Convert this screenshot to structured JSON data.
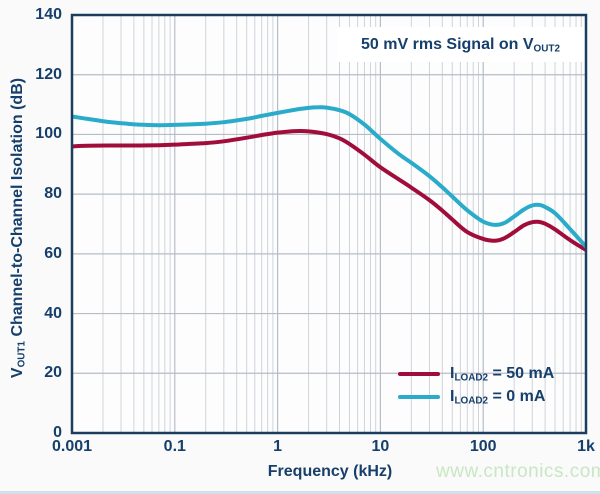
{
  "page": {
    "watermark": "www.cntronics.com",
    "background": "#fafafa",
    "bottom_strip_color": "#cfe2ee"
  },
  "chart_data": {
    "type": "line",
    "x_scale": "log",
    "annotation": {
      "pre": "50 mV rms Signal on V",
      "sub": "OUT2"
    },
    "xlabel": "Frequency (kHz)",
    "ylabel": {
      "pre": "V",
      "sub": "OUT1",
      "post": " Channel-to-Channel Isolation (dB)"
    },
    "x_tick_labels": [
      "0.001",
      "0.1",
      "1",
      "10",
      "100",
      "1k"
    ],
    "x_tick_values": [
      0.001,
      0.1,
      1,
      10,
      100,
      1000
    ],
    "y_ticks": [
      0,
      20,
      40,
      60,
      80,
      100,
      120,
      140
    ],
    "ylim": [
      0,
      140
    ],
    "grid": true,
    "legend_position": "inside-lower-right",
    "colors": {
      "series_50mA": "#a10d3a",
      "series_0mA": "#2aabca",
      "axis_text": "#163f6b",
      "plot_border": "#1c3e5e",
      "grid_major": "#b6bdc7",
      "grid_minor": "#cfd4da",
      "plot_bg": "#fdfdfe"
    },
    "series": [
      {
        "name_parts": {
          "pre": "I",
          "sub": "LOAD2",
          "post": " = 50 mA"
        },
        "color_key": "series_50mA",
        "points": [
          [
            0.001,
            96.0
          ],
          [
            0.002,
            96.2
          ],
          [
            0.005,
            96.3
          ],
          [
            0.01,
            96.3
          ],
          [
            0.02,
            96.3
          ],
          [
            0.05,
            96.4
          ],
          [
            0.1,
            96.6
          ],
          [
            0.2,
            97.1
          ],
          [
            0.3,
            97.7
          ],
          [
            0.5,
            98.9
          ],
          [
            0.7,
            99.8
          ],
          [
            1.0,
            100.6
          ],
          [
            1.5,
            101.1
          ],
          [
            2.0,
            101.0
          ],
          [
            3.0,
            100.1
          ],
          [
            4.0,
            98.7
          ],
          [
            5.0,
            96.8
          ],
          [
            7.0,
            93.2
          ],
          [
            10,
            89.0
          ],
          [
            15,
            85.0
          ],
          [
            20,
            82.2
          ],
          [
            30,
            78.0
          ],
          [
            40,
            74.5
          ],
          [
            50,
            71.5
          ],
          [
            70,
            67.3
          ],
          [
            100,
            65.0
          ],
          [
            130,
            64.4
          ],
          [
            160,
            65.2
          ],
          [
            200,
            67.3
          ],
          [
            250,
            69.6
          ],
          [
            300,
            70.6
          ],
          [
            350,
            70.7
          ],
          [
            400,
            70.1
          ],
          [
            500,
            68.2
          ],
          [
            700,
            64.6
          ],
          [
            1000,
            61.3
          ]
        ]
      },
      {
        "name_parts": {
          "pre": "I",
          "sub": "LOAD2",
          "post": " = 0 mA"
        },
        "color_key": "series_0mA",
        "points": [
          [
            0.001,
            106.0
          ],
          [
            0.002,
            105.2
          ],
          [
            0.005,
            104.2
          ],
          [
            0.01,
            103.7
          ],
          [
            0.02,
            103.3
          ],
          [
            0.05,
            103.1
          ],
          [
            0.1,
            103.2
          ],
          [
            0.2,
            103.6
          ],
          [
            0.3,
            104.1
          ],
          [
            0.5,
            105.2
          ],
          [
            0.7,
            106.2
          ],
          [
            1.0,
            107.2
          ],
          [
            1.5,
            108.3
          ],
          [
            2.0,
            108.9
          ],
          [
            2.5,
            109.1
          ],
          [
            3.0,
            109.0
          ],
          [
            4.0,
            108.1
          ],
          [
            5.0,
            106.8
          ],
          [
            7.0,
            103.3
          ],
          [
            10,
            98.5
          ],
          [
            15,
            93.5
          ],
          [
            20,
            90.5
          ],
          [
            30,
            86.0
          ],
          [
            40,
            82.3
          ],
          [
            50,
            79.2
          ],
          [
            70,
            74.6
          ],
          [
            100,
            70.8
          ],
          [
            130,
            69.7
          ],
          [
            160,
            70.3
          ],
          [
            200,
            72.5
          ],
          [
            250,
            74.9
          ],
          [
            300,
            76.2
          ],
          [
            350,
            76.4
          ],
          [
            400,
            75.7
          ],
          [
            500,
            73.6
          ],
          [
            700,
            68.3
          ],
          [
            1000,
            62.4
          ]
        ]
      }
    ]
  }
}
